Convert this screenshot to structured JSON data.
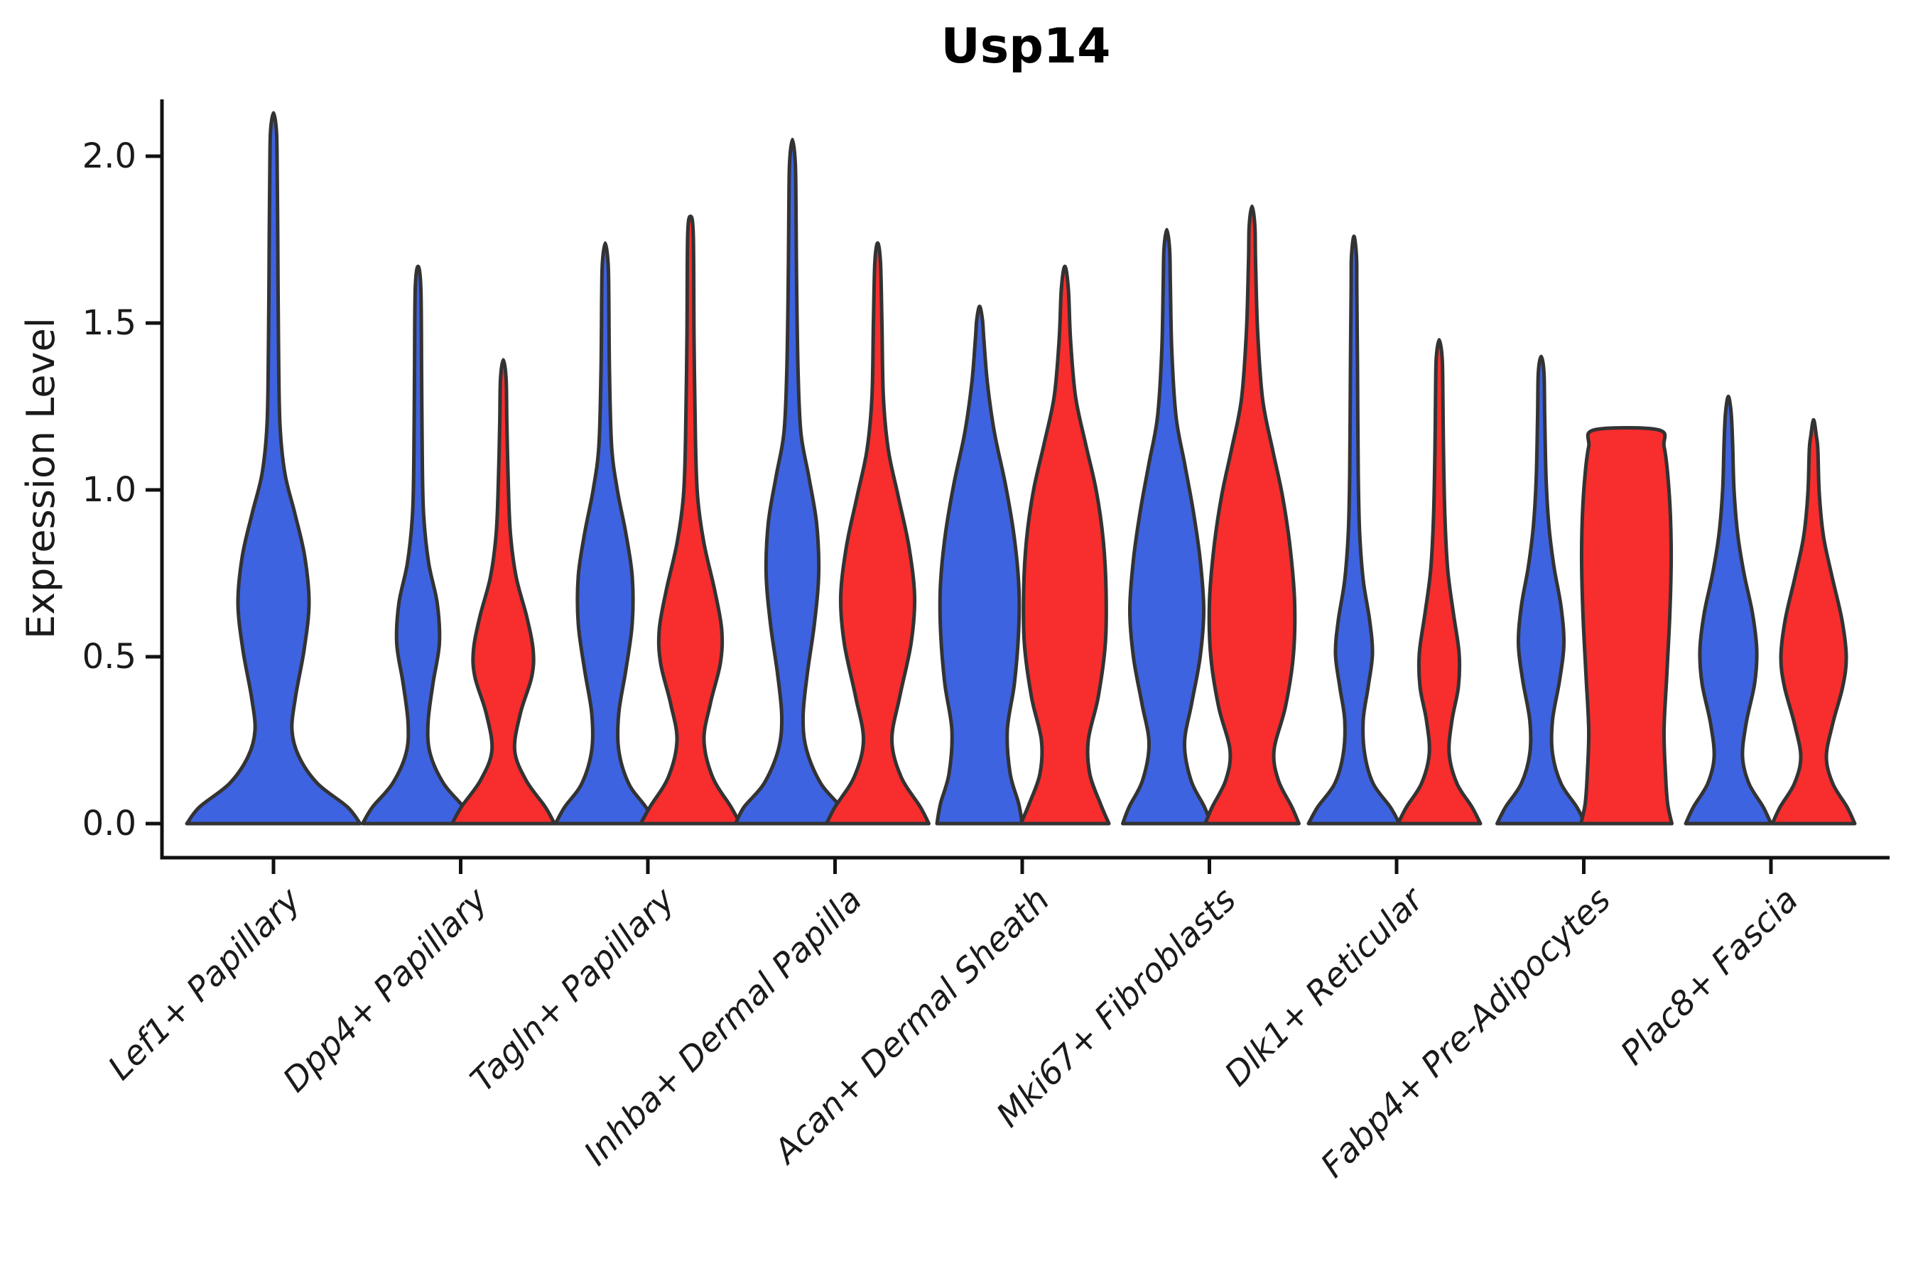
{
  "figure": {
    "title": "Usp14",
    "background": "#ffffff"
  },
  "axes": {
    "ylabel": "Expression Level",
    "y_ticks": [
      "0.0",
      "0.5",
      "1.0",
      "1.5",
      "2.0"
    ]
  },
  "colors": {
    "blue_fill": "#3E63E0",
    "red_fill": "#F82D2D",
    "violin_outline": "#333333",
    "axis": "#111111",
    "text": "#1a1a1a"
  },
  "chart_data": {
    "type": "violin",
    "title": "Usp14",
    "xlabel": "",
    "ylabel": "Expression Level",
    "ylim": [
      -0.1,
      2.25
    ],
    "yticks": [
      0.0,
      0.5,
      1.0,
      1.5,
      2.0
    ],
    "grid": false,
    "legend": "none",
    "categories": [
      "Lef1+ Papillary",
      "Dpp4+ Papillary",
      "Tagln+ Papillary",
      "Inhba+ Dermal Papilla",
      "Acan+ Dermal Sheath",
      "Mki67+ Fibroblasts",
      "Dlk1+ Reticular",
      "Fabp4+ Pre-Adipocytes",
      "Plac8+ Fascia"
    ],
    "series": [
      {
        "key": "blue",
        "color": "#3E63E0"
      },
      {
        "key": "red",
        "color": "#F82D2D"
      }
    ],
    "violins": [
      {
        "category": 0,
        "series": "blue",
        "position": "center",
        "max": 2.13,
        "profile": [
          [
            0,
            122
          ],
          [
            0.05,
            104
          ],
          [
            0.12,
            62
          ],
          [
            0.2,
            36
          ],
          [
            0.28,
            26
          ],
          [
            0.38,
            31
          ],
          [
            0.52,
            43
          ],
          [
            0.66,
            50
          ],
          [
            0.8,
            44
          ],
          [
            0.93,
            30
          ],
          [
            1.05,
            16
          ],
          [
            1.2,
            9
          ],
          [
            1.45,
            7
          ],
          [
            1.75,
            6
          ],
          [
            2.0,
            5
          ],
          [
            2.08,
            4
          ]
        ]
      },
      {
        "category": 1,
        "series": "blue",
        "position": "left",
        "max": 1.67,
        "profile": [
          [
            0,
            78
          ],
          [
            0.05,
            64
          ],
          [
            0.12,
            36
          ],
          [
            0.21,
            17
          ],
          [
            0.3,
            14
          ],
          [
            0.42,
            21
          ],
          [
            0.54,
            30
          ],
          [
            0.66,
            27
          ],
          [
            0.78,
            15
          ],
          [
            0.92,
            8
          ],
          [
            1.08,
            6
          ],
          [
            1.35,
            5
          ],
          [
            1.6,
            4
          ]
        ]
      },
      {
        "category": 1,
        "series": "red",
        "position": "right",
        "max": 1.39,
        "profile": [
          [
            0,
            72
          ],
          [
            0.05,
            59
          ],
          [
            0.13,
            32
          ],
          [
            0.22,
            16
          ],
          [
            0.33,
            24
          ],
          [
            0.44,
            40
          ],
          [
            0.52,
            42
          ],
          [
            0.62,
            33
          ],
          [
            0.74,
            18
          ],
          [
            0.87,
            10
          ],
          [
            1.02,
            7
          ],
          [
            1.2,
            5
          ],
          [
            1.33,
            4
          ]
        ]
      },
      {
        "category": 2,
        "series": "blue",
        "position": "left",
        "max": 1.74,
        "profile": [
          [
            0,
            70
          ],
          [
            0.05,
            57
          ],
          [
            0.12,
            33
          ],
          [
            0.22,
            19
          ],
          [
            0.33,
            19
          ],
          [
            0.46,
            29
          ],
          [
            0.6,
            38
          ],
          [
            0.74,
            38
          ],
          [
            0.87,
            29
          ],
          [
            1.0,
            17
          ],
          [
            1.13,
            9
          ],
          [
            1.35,
            6
          ],
          [
            1.58,
            5
          ],
          [
            1.68,
            4
          ]
        ]
      },
      {
        "category": 2,
        "series": "red",
        "position": "right",
        "max": 1.82,
        "profile": [
          [
            0,
            70
          ],
          [
            0.05,
            57
          ],
          [
            0.14,
            31
          ],
          [
            0.25,
            19
          ],
          [
            0.36,
            28
          ],
          [
            0.48,
            42
          ],
          [
            0.58,
            44
          ],
          [
            0.7,
            34
          ],
          [
            0.84,
            19
          ],
          [
            0.98,
            10
          ],
          [
            1.15,
            7
          ],
          [
            1.45,
            5
          ],
          [
            1.76,
            4
          ]
        ]
      },
      {
        "category": 3,
        "series": "blue",
        "position": "left",
        "max": 2.05,
        "profile": [
          [
            0,
            80
          ],
          [
            0.05,
            68
          ],
          [
            0.12,
            40
          ],
          [
            0.22,
            20
          ],
          [
            0.32,
            15
          ],
          [
            0.45,
            21
          ],
          [
            0.6,
            31
          ],
          [
            0.75,
            37
          ],
          [
            0.9,
            34
          ],
          [
            1.04,
            23
          ],
          [
            1.17,
            12
          ],
          [
            1.35,
            8
          ],
          [
            1.6,
            6
          ],
          [
            1.85,
            5
          ],
          [
            1.98,
            4
          ]
        ]
      },
      {
        "category": 3,
        "series": "red",
        "position": "right",
        "max": 1.74,
        "profile": [
          [
            0,
            72
          ],
          [
            0.05,
            60
          ],
          [
            0.14,
            33
          ],
          [
            0.25,
            20
          ],
          [
            0.38,
            31
          ],
          [
            0.54,
            47
          ],
          [
            0.68,
            52
          ],
          [
            0.83,
            44
          ],
          [
            0.98,
            29
          ],
          [
            1.12,
            15
          ],
          [
            1.28,
            8
          ],
          [
            1.5,
            6
          ],
          [
            1.68,
            4
          ]
        ]
      },
      {
        "category": 4,
        "series": "blue",
        "position": "left",
        "max": 1.55,
        "profile": [
          [
            0,
            60
          ],
          [
            0.06,
            55
          ],
          [
            0.15,
            43
          ],
          [
            0.28,
            39
          ],
          [
            0.42,
            49
          ],
          [
            0.58,
            55
          ],
          [
            0.72,
            55
          ],
          [
            0.87,
            48
          ],
          [
            1.02,
            36
          ],
          [
            1.17,
            21
          ],
          [
            1.32,
            11
          ],
          [
            1.45,
            6
          ],
          [
            1.51,
            4
          ]
        ]
      },
      {
        "category": 4,
        "series": "red",
        "position": "right",
        "max": 1.67,
        "profile": [
          [
            0,
            62
          ],
          [
            0.06,
            50
          ],
          [
            0.15,
            35
          ],
          [
            0.25,
            33
          ],
          [
            0.38,
            47
          ],
          [
            0.54,
            57
          ],
          [
            0.7,
            58
          ],
          [
            0.85,
            54
          ],
          [
            1.0,
            44
          ],
          [
            1.14,
            29
          ],
          [
            1.28,
            15
          ],
          [
            1.45,
            8
          ],
          [
            1.6,
            5
          ]
        ]
      },
      {
        "category": 5,
        "series": "blue",
        "position": "left",
        "max": 1.78,
        "profile": [
          [
            0,
            62
          ],
          [
            0.05,
            53
          ],
          [
            0.13,
            34
          ],
          [
            0.24,
            25
          ],
          [
            0.36,
            35
          ],
          [
            0.5,
            47
          ],
          [
            0.64,
            52
          ],
          [
            0.79,
            47
          ],
          [
            0.94,
            37
          ],
          [
            1.08,
            25
          ],
          [
            1.22,
            13
          ],
          [
            1.42,
            7
          ],
          [
            1.62,
            5
          ],
          [
            1.72,
            4
          ]
        ]
      },
      {
        "category": 5,
        "series": "red",
        "position": "right",
        "max": 1.85,
        "profile": [
          [
            0,
            66
          ],
          [
            0.05,
            56
          ],
          [
            0.13,
            37
          ],
          [
            0.22,
            31
          ],
          [
            0.35,
            47
          ],
          [
            0.5,
            58
          ],
          [
            0.66,
            60
          ],
          [
            0.82,
            54
          ],
          [
            0.98,
            43
          ],
          [
            1.12,
            29
          ],
          [
            1.27,
            15
          ],
          [
            1.47,
            8
          ],
          [
            1.68,
            5
          ],
          [
            1.79,
            4
          ]
        ]
      },
      {
        "category": 6,
        "series": "blue",
        "position": "left",
        "max": 1.76,
        "profile": [
          [
            0,
            64
          ],
          [
            0.05,
            51
          ],
          [
            0.12,
            27
          ],
          [
            0.21,
            15
          ],
          [
            0.31,
            13
          ],
          [
            0.41,
            20
          ],
          [
            0.51,
            26
          ],
          [
            0.61,
            22
          ],
          [
            0.73,
            13
          ],
          [
            0.87,
            8
          ],
          [
            1.05,
            6
          ],
          [
            1.35,
            5
          ],
          [
            1.6,
            4
          ],
          [
            1.7,
            3.5
          ]
        ]
      },
      {
        "category": 6,
        "series": "red",
        "position": "right",
        "max": 1.45,
        "profile": [
          [
            0,
            58
          ],
          [
            0.05,
            46
          ],
          [
            0.12,
            25
          ],
          [
            0.21,
            14
          ],
          [
            0.31,
            18
          ],
          [
            0.41,
            27
          ],
          [
            0.51,
            28
          ],
          [
            0.63,
            20
          ],
          [
            0.76,
            12
          ],
          [
            0.92,
            8
          ],
          [
            1.12,
            6
          ],
          [
            1.32,
            5
          ],
          [
            1.4,
            4
          ]
        ]
      },
      {
        "category": 7,
        "series": "blue",
        "position": "left",
        "max": 1.4,
        "profile": [
          [
            0,
            62
          ],
          [
            0.05,
            50
          ],
          [
            0.12,
            28
          ],
          [
            0.21,
            16
          ],
          [
            0.31,
            16
          ],
          [
            0.43,
            26
          ],
          [
            0.54,
            32
          ],
          [
            0.65,
            28
          ],
          [
            0.77,
            18
          ],
          [
            0.89,
            11
          ],
          [
            1.03,
            7
          ],
          [
            1.22,
            5
          ],
          [
            1.35,
            4
          ]
        ]
      },
      {
        "category": 7,
        "series": "red",
        "position": "right",
        "max": 1.18,
        "flat_top": true,
        "profile": [
          [
            0,
            64
          ],
          [
            0.06,
            58
          ],
          [
            0.15,
            55
          ],
          [
            0.28,
            53
          ],
          [
            0.45,
            57
          ],
          [
            0.62,
            61
          ],
          [
            0.78,
            63
          ],
          [
            0.92,
            62
          ],
          [
            1.05,
            58
          ],
          [
            1.13,
            53
          ],
          [
            1.18,
            45
          ]
        ]
      },
      {
        "category": 8,
        "series": "blue",
        "position": "left",
        "max": 1.28,
        "profile": [
          [
            0,
            60
          ],
          [
            0.05,
            49
          ],
          [
            0.12,
            29
          ],
          [
            0.2,
            20
          ],
          [
            0.3,
            25
          ],
          [
            0.42,
            37
          ],
          [
            0.52,
            40
          ],
          [
            0.63,
            34
          ],
          [
            0.75,
            22
          ],
          [
            0.87,
            13
          ],
          [
            1.0,
            8
          ],
          [
            1.14,
            6
          ],
          [
            1.23,
            4
          ]
        ]
      },
      {
        "category": 8,
        "series": "red",
        "position": "right",
        "max": 1.21,
        "profile": [
          [
            0,
            58
          ],
          [
            0.05,
            47
          ],
          [
            0.12,
            27
          ],
          [
            0.2,
            18
          ],
          [
            0.3,
            27
          ],
          [
            0.41,
            41
          ],
          [
            0.5,
            46
          ],
          [
            0.61,
            40
          ],
          [
            0.74,
            26
          ],
          [
            0.86,
            14
          ],
          [
            0.99,
            8
          ],
          [
            1.12,
            6
          ],
          [
            1.16,
            4
          ]
        ]
      }
    ]
  }
}
